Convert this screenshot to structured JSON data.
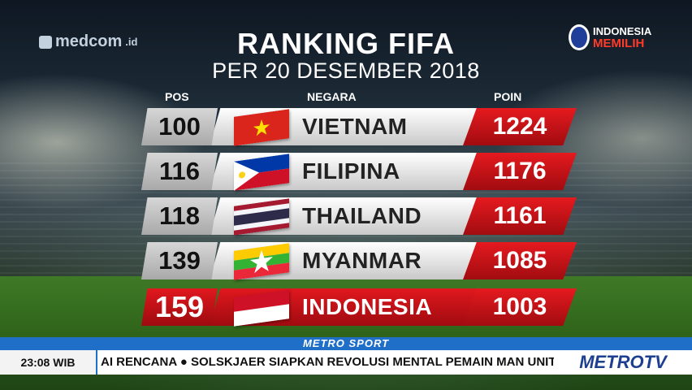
{
  "header": {
    "title": "RANKING FIFA",
    "subtitle": "PER 20 DESEMBER 2018"
  },
  "logos": {
    "left": {
      "name": "medcom",
      "suffix": ".id"
    },
    "right": {
      "line1": "INDONESIA",
      "line2": "MEMILIH"
    }
  },
  "columns": {
    "pos": "POS",
    "country": "NEGARA",
    "points": "POIN"
  },
  "rows": [
    {
      "pos": "100",
      "country": "VIETNAM",
      "points": "1224",
      "flag": "vietnam-flag-icon"
    },
    {
      "pos": "116",
      "country": "FILIPINA",
      "points": "1176",
      "flag": "philippines-flag-icon"
    },
    {
      "pos": "118",
      "country": "THAILAND",
      "points": "1161",
      "flag": "thailand-flag-icon"
    },
    {
      "pos": "139",
      "country": "MYANMAR",
      "points": "1085",
      "flag": "myanmar-flag-icon"
    },
    {
      "pos": "159",
      "country": "INDONESIA",
      "points": "1003",
      "flag": "indonesia-flag-icon",
      "highlight": true
    }
  ],
  "ticker": {
    "label": "METRO SPORT",
    "time": "23:08 WIB",
    "text": "AI RENCANA  ●  SOLSKJAER SIAPKAN REVOLUSI MENTAL PEMAIN MAN UNITED",
    "channel": "METROTV"
  },
  "colors": {
    "accent_red": "#e51a1f",
    "ticker_blue": "#1f6fc8",
    "row_grey": "#d7d7d7"
  }
}
